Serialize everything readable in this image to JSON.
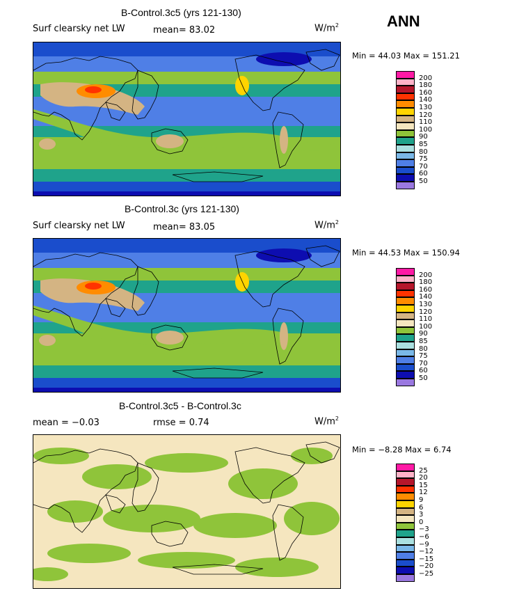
{
  "season": "ANN",
  "panels": [
    {
      "title": "B-Control.3c5 (yrs 121-130)",
      "variable": "Surf clearsky net LW",
      "stat1": "mean=  83.02",
      "stat2": "",
      "units_base": "W/m",
      "units_exp": "2",
      "minmax": "Min =  44.03 Max = 151.21",
      "levels": [
        "200",
        "180",
        "160",
        "140",
        "130",
        "120",
        "110",
        "100",
        "90",
        "85",
        "80",
        "75",
        "70",
        "60",
        "50"
      ],
      "colors": [
        "#ff1aa5",
        "#ffb3c8",
        "#b5162b",
        "#ff3300",
        "#ff8c00",
        "#ffd400",
        "#d4b483",
        "#f5e6bf",
        "#8fc43a",
        "#1fa38b",
        "#aae0e0",
        "#7ab8e8",
        "#4f7fe6",
        "#1a4dcc",
        "#0d0db0",
        "#9a78e0"
      ],
      "scheme": "control"
    },
    {
      "title": "B-Control.3c (yrs 121-130)",
      "variable": "Surf clearsky net LW",
      "stat1": "mean=  83.05",
      "stat2": "",
      "units_base": "W/m",
      "units_exp": "2",
      "minmax": "Min =  44.53 Max = 150.94",
      "levels": [
        "200",
        "180",
        "160",
        "140",
        "130",
        "120",
        "110",
        "100",
        "90",
        "85",
        "80",
        "75",
        "70",
        "60",
        "50"
      ],
      "colors": [
        "#ff1aa5",
        "#ffb3c8",
        "#b5162b",
        "#ff3300",
        "#ff8c00",
        "#ffd400",
        "#d4b483",
        "#f5e6bf",
        "#8fc43a",
        "#1fa38b",
        "#aae0e0",
        "#7ab8e8",
        "#4f7fe6",
        "#1a4dcc",
        "#0d0db0",
        "#9a78e0"
      ],
      "scheme": "control"
    },
    {
      "title": "B-Control.3c5 - B-Control.3c",
      "variable": "",
      "stat1": "mean =  −0.03",
      "stat2": "rmse =   0.74",
      "units_base": "W/m",
      "units_exp": "2",
      "minmax": "Min =  −8.28 Max =   6.74",
      "levels": [
        "25",
        "20",
        "15",
        "12",
        "9",
        "6",
        "3",
        "0",
        "−3",
        "−6",
        "−9",
        "−12",
        "−15",
        "−20",
        "−25"
      ],
      "colors": [
        "#ff1aa5",
        "#ffb3c8",
        "#b5162b",
        "#ff3300",
        "#ff8c00",
        "#ffd400",
        "#d4b483",
        "#f5e6bf",
        "#8fc43a",
        "#1fa38b",
        "#aae0e0",
        "#7ab8e8",
        "#4f7fe6",
        "#1a4dcc",
        "#0d0db0",
        "#9a78e0"
      ],
      "scheme": "diff"
    }
  ]
}
